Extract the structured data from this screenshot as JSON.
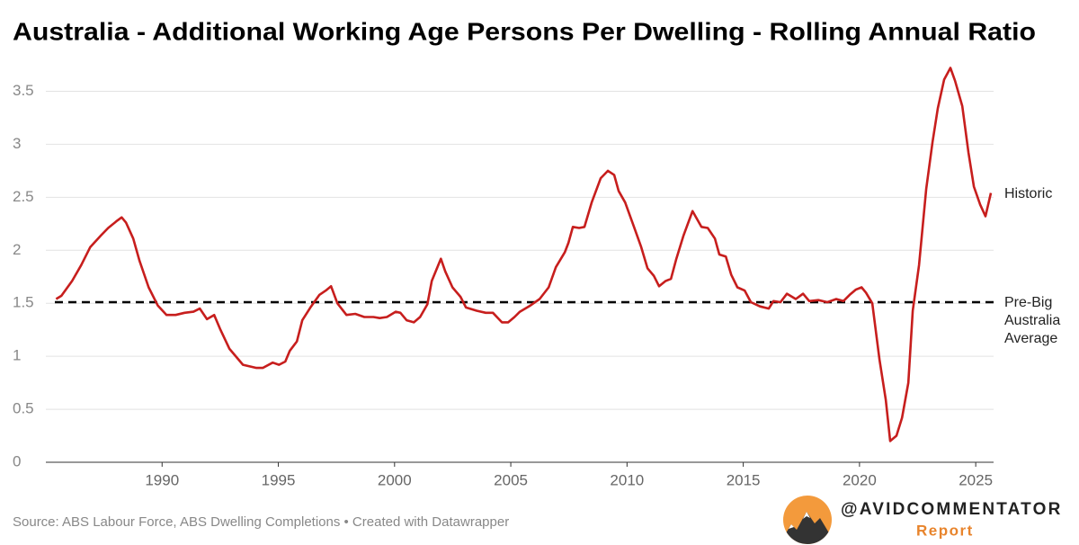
{
  "chart_data": {
    "type": "line",
    "title": "Australia - Additional Working Age Persons Per Dwelling - Rolling Annual Ratio",
    "x": [
      1985.44,
      1985.67,
      1986.13,
      1986.52,
      1986.91,
      1987.37,
      1987.68,
      1988.07,
      1988.26,
      1988.45,
      1988.76,
      1989.03,
      1989.42,
      1989.81,
      1990.19,
      1990.58,
      1990.97,
      1991.35,
      1991.62,
      1991.93,
      1992.24,
      1992.51,
      1992.9,
      1993.48,
      1994.06,
      1994.33,
      1994.76,
      1995.03,
      1995.3,
      1995.49,
      1995.8,
      1996.03,
      1996.38,
      1996.77,
      1997.04,
      1997.27,
      1997.54,
      1997.93,
      1998.31,
      1998.7,
      1999.09,
      1999.36,
      1999.67,
      2000.05,
      2000.25,
      2000.52,
      2000.83,
      2001.1,
      2001.41,
      2001.6,
      2001.99,
      2002.18,
      2002.49,
      2002.84,
      2003.07,
      2003.53,
      2003.92,
      2004.23,
      2004.62,
      2004.89,
      2005.16,
      2005.39,
      2005.85,
      2006.24,
      2006.63,
      2006.94,
      2007.32,
      2007.48,
      2007.67,
      2007.94,
      2008.17,
      2008.48,
      2008.87,
      2009.18,
      2009.45,
      2009.64,
      2009.92,
      2010.3,
      2010.61,
      2010.88,
      2011.15,
      2011.38,
      2011.66,
      2011.89,
      2012.12,
      2012.43,
      2012.82,
      2013.2,
      2013.47,
      2013.78,
      2013.97,
      2014.25,
      2014.48,
      2014.75,
      2015.06,
      2015.33,
      2015.72,
      2016.1,
      2016.3,
      2016.6,
      2016.88,
      2017.26,
      2017.57,
      2017.84,
      2018.23,
      2018.62,
      2019.0,
      2019.31,
      2019.58,
      2019.85,
      2020.09,
      2020.28,
      2020.55,
      2020.86,
      2021.13,
      2021.32,
      2021.59,
      2021.83,
      2022.1,
      2022.29,
      2022.56,
      2022.87,
      2023.14,
      2023.37,
      2023.64,
      2023.91,
      2024.11,
      2024.42,
      2024.69,
      2024.92,
      2025.19,
      2025.42,
      2025.65
    ],
    "series": [
      {
        "name": "Historic",
        "color": "#c71e1d",
        "values": [
          1.54,
          1.57,
          1.71,
          1.86,
          2.03,
          2.14,
          2.21,
          2.28,
          2.31,
          2.26,
          2.11,
          1.9,
          1.65,
          1.48,
          1.39,
          1.39,
          1.41,
          1.42,
          1.45,
          1.35,
          1.39,
          1.25,
          1.07,
          0.92,
          0.89,
          0.89,
          0.94,
          0.92,
          0.95,
          1.05,
          1.14,
          1.34,
          1.46,
          1.58,
          1.62,
          1.66,
          1.5,
          1.39,
          1.4,
          1.37,
          1.37,
          1.36,
          1.37,
          1.42,
          1.41,
          1.34,
          1.32,
          1.37,
          1.49,
          1.71,
          1.92,
          1.8,
          1.65,
          1.56,
          1.46,
          1.43,
          1.41,
          1.41,
          1.32,
          1.32,
          1.37,
          1.42,
          1.48,
          1.54,
          1.65,
          1.84,
          1.98,
          2.07,
          2.22,
          2.21,
          2.22,
          2.45,
          2.68,
          2.75,
          2.71,
          2.56,
          2.45,
          2.22,
          2.03,
          1.83,
          1.76,
          1.66,
          1.71,
          1.73,
          1.92,
          2.14,
          2.37,
          2.22,
          2.21,
          2.11,
          1.96,
          1.94,
          1.77,
          1.65,
          1.62,
          1.51,
          1.47,
          1.45,
          1.52,
          1.51,
          1.59,
          1.54,
          1.59,
          1.52,
          1.53,
          1.51,
          1.54,
          1.52,
          1.58,
          1.63,
          1.65,
          1.6,
          1.5,
          0.97,
          0.59,
          0.2,
          0.25,
          0.42,
          0.75,
          1.43,
          1.86,
          2.58,
          3.02,
          3.34,
          3.61,
          3.72,
          3.6,
          3.36,
          2.92,
          2.6,
          2.43,
          2.32,
          2.54
        ]
      }
    ],
    "reference_line": {
      "value": 1.51,
      "label": [
        "Pre-Big",
        "Australia",
        "Average"
      ]
    },
    "xlim": [
      1985,
      2026
    ],
    "xticks": [
      1990,
      1995,
      2000,
      2005,
      2010,
      2015,
      2020,
      2025
    ],
    "ylim": [
      0,
      3.75
    ],
    "yticks": [
      0,
      0.5,
      1,
      1.5,
      2,
      2.5,
      3,
      3.5
    ],
    "grid": true
  },
  "footer": {
    "source": "Source: ABS Labour Force, ABS Dwelling Completions • Created with Datawrapper",
    "brand_handle": "@AVIDCOMMENTATOR",
    "brand_sub": "Report"
  }
}
